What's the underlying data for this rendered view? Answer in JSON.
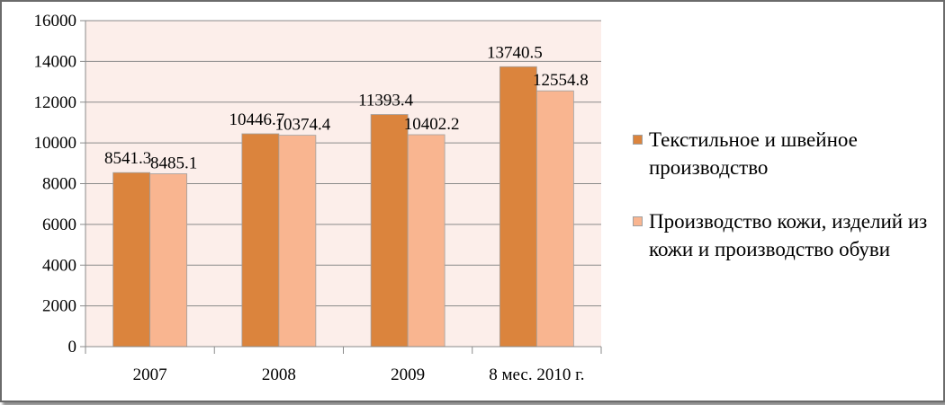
{
  "chart_data": {
    "type": "bar",
    "categories": [
      "2007",
      "2008",
      "2009",
      "8 мес. 2010 г."
    ],
    "series": [
      {
        "name": "Текстильное и швейное производство",
        "values": [
          8541.3,
          10446.7,
          11393.4,
          13740.5
        ],
        "labels": [
          "8541.3",
          "10446.7",
          "11393.4",
          "13740.5"
        ],
        "color": "#DB843D"
      },
      {
        "name": "Производство кожи, изделий из кожи и производство обуви",
        "values": [
          8485.1,
          10374.4,
          10402.2,
          12554.8
        ],
        "labels": [
          "8485.1",
          "10374.4",
          "10402.2",
          "12554.8"
        ],
        "color": "#F9B590"
      }
    ],
    "yticks": [
      "0",
      "2000",
      "4000",
      "6000",
      "8000",
      "10000",
      "12000",
      "14000",
      "16000"
    ],
    "ylim": [
      0,
      16000
    ],
    "grid": true,
    "plot_background": "#FCEEEA",
    "legend_position": "right"
  }
}
